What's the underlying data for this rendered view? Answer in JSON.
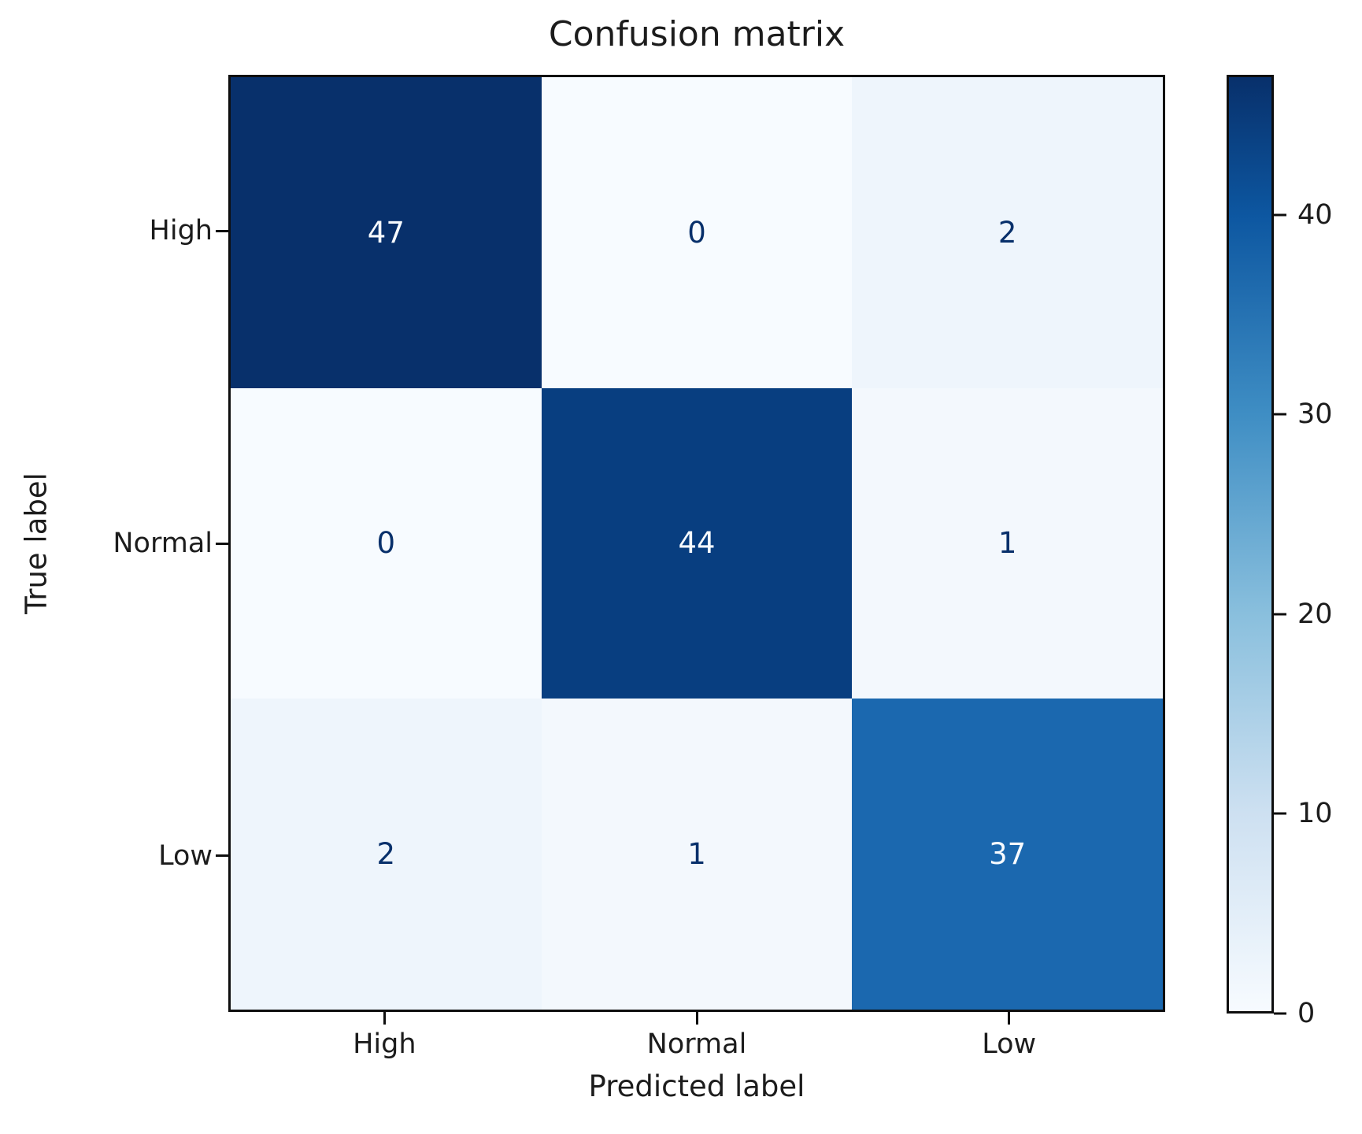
{
  "title": "Confusion matrix",
  "chart_data": {
    "type": "heatmap",
    "title": "Confusion matrix",
    "xlabel": "Predicted label",
    "ylabel": "True label",
    "x_categories": [
      "High",
      "Normal",
      "Low"
    ],
    "y_categories": [
      "High",
      "Normal",
      "Low"
    ],
    "matrix": [
      [
        47,
        0,
        2
      ],
      [
        0,
        44,
        1
      ],
      [
        2,
        1,
        37
      ]
    ],
    "colormap": "Blues",
    "vmin": 0,
    "vmax": 47,
    "colorbar_ticks": [
      0,
      10,
      20,
      30,
      40
    ],
    "legend_position": "right-colorbar",
    "grid": false,
    "cell_colors": [
      [
        "#08306b",
        "#f7fbff",
        "#eef5fc"
      ],
      [
        "#f7fbff",
        "#083e80",
        "#f3f8fd"
      ],
      [
        "#eef5fc",
        "#f3f8fd",
        "#1b68af"
      ]
    ],
    "text_color_dark": "#08306b",
    "text_color_light": "#f7fbff",
    "colorbar_gradient": [
      {
        "pos": 0.0,
        "color": "#08306b"
      },
      {
        "pos": 0.149,
        "color": "#0d57a1"
      },
      {
        "pos": 0.362,
        "color": "#3f8ec4"
      },
      {
        "pos": 0.574,
        "color": "#89bfdd"
      },
      {
        "pos": 0.787,
        "color": "#cde0f1"
      },
      {
        "pos": 1.0,
        "color": "#f7fbff"
      }
    ]
  }
}
